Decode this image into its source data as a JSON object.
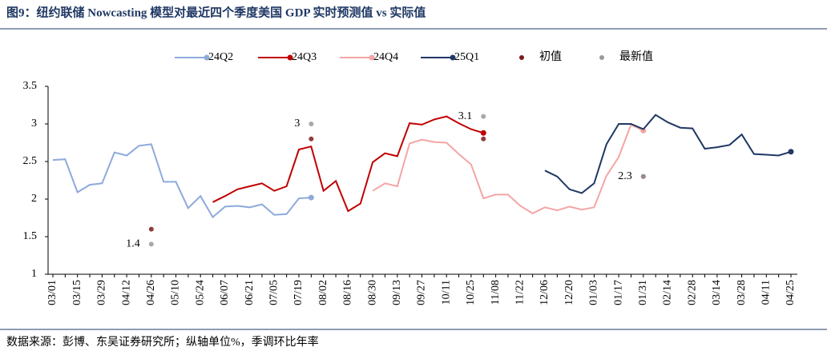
{
  "chart_data": {
    "type": "line",
    "title": "图9：纽约联储 Nowcasting 模型对最近四个季度美国 GDP 实时预测值 vs 实际值",
    "source": "数据来源：彭博、东吴证券研究所；纵轴单位%，季调环比年率",
    "categories": [
      "03/01",
      null,
      "03/15",
      null,
      "03/29",
      null,
      "04/12",
      null,
      "04/26",
      null,
      "05/10",
      null,
      "05/24",
      null,
      "06/07",
      null,
      "06/21",
      null,
      "07/05",
      null,
      "07/19",
      null,
      "08/02",
      null,
      "08/16",
      null,
      "08/30",
      null,
      "09/13",
      null,
      "09/27",
      null,
      "10/11",
      null,
      "10/25",
      null,
      "11/08",
      null,
      "11/22",
      null,
      "12/06",
      null,
      "12/20",
      null,
      "01/03",
      null,
      "01/17",
      null,
      "01/31",
      null,
      "02/14",
      null,
      "02/28",
      null,
      "03/14",
      null,
      "03/28",
      null,
      "04/11",
      null,
      "04/25"
    ],
    "ylim": [
      1,
      3.5
    ],
    "yticks": [
      1,
      1.5,
      2,
      2.5,
      3,
      3.5
    ],
    "series": [
      {
        "name": "24Q2",
        "type": "line",
        "color": "#8eaadb",
        "values": [
          2.52,
          2.53,
          2.09,
          2.19,
          2.21,
          2.62,
          2.58,
          2.71,
          2.73,
          2.23,
          2.23,
          1.88,
          2.04,
          1.76,
          1.9,
          1.91,
          1.89,
          1.93,
          1.79,
          1.8,
          2.01,
          2.02,
          null,
          null,
          null,
          null,
          null,
          null,
          null,
          null,
          null,
          null,
          null,
          null,
          null,
          null,
          null,
          null,
          null,
          null,
          null,
          null,
          null,
          null,
          null,
          null,
          null,
          null,
          null,
          null,
          null,
          null,
          null,
          null,
          null,
          null,
          null,
          null,
          null,
          null,
          null
        ]
      },
      {
        "name": "24Q3",
        "type": "line",
        "color": "#c00000",
        "values": [
          null,
          null,
          null,
          null,
          null,
          null,
          null,
          null,
          null,
          null,
          null,
          null,
          null,
          1.96,
          2.04,
          2.13,
          2.17,
          2.21,
          2.11,
          2.17,
          2.66,
          2.7,
          2.11,
          2.24,
          1.84,
          1.94,
          2.49,
          2.61,
          2.57,
          3.01,
          2.99,
          3.06,
          3.1,
          3.01,
          2.93,
          2.88,
          null,
          null,
          null,
          null,
          null,
          null,
          null,
          null,
          null,
          null,
          null,
          null,
          null,
          null,
          null,
          null,
          null,
          null,
          null,
          null,
          null,
          null,
          null,
          null,
          null
        ]
      },
      {
        "name": "24Q4",
        "type": "line",
        "color": "#f4a5a5",
        "values": [
          null,
          null,
          null,
          null,
          null,
          null,
          null,
          null,
          null,
          null,
          null,
          null,
          null,
          null,
          null,
          null,
          null,
          null,
          null,
          null,
          null,
          null,
          null,
          null,
          null,
          null,
          2.11,
          2.21,
          2.17,
          2.74,
          2.79,
          2.76,
          2.75,
          2.6,
          2.46,
          2.01,
          2.06,
          2.06,
          1.91,
          1.81,
          1.89,
          1.85,
          1.9,
          1.86,
          1.89,
          2.31,
          2.56,
          2.99,
          2.91,
          null,
          null,
          null,
          null,
          null,
          null,
          null,
          null,
          null,
          null,
          null,
          null
        ]
      },
      {
        "name": "25Q1",
        "type": "line",
        "color": "#1f3864",
        "values": [
          null,
          null,
          null,
          null,
          null,
          null,
          null,
          null,
          null,
          null,
          null,
          null,
          null,
          null,
          null,
          null,
          null,
          null,
          null,
          null,
          null,
          null,
          null,
          null,
          null,
          null,
          null,
          null,
          null,
          null,
          null,
          null,
          null,
          null,
          null,
          null,
          null,
          null,
          null,
          null,
          2.38,
          2.3,
          2.13,
          2.08,
          2.21,
          2.73,
          3.0,
          3.0,
          2.93,
          3.12,
          3.02,
          2.95,
          2.94,
          2.67,
          2.69,
          2.72,
          2.86,
          2.6,
          2.59,
          2.58,
          2.63
        ]
      },
      {
        "name": "初值",
        "type": "scatter",
        "color": "#7b1a1a",
        "values": [
          null,
          null,
          null,
          null,
          null,
          null,
          null,
          null,
          1.6,
          null,
          null,
          null,
          null,
          null,
          null,
          null,
          null,
          null,
          null,
          null,
          null,
          2.8,
          null,
          null,
          null,
          null,
          null,
          null,
          null,
          null,
          null,
          null,
          null,
          null,
          null,
          2.8,
          null,
          null,
          null,
          null,
          null,
          null,
          null,
          null,
          null,
          null,
          null,
          null,
          2.3,
          null,
          null,
          null,
          null,
          null,
          null,
          null,
          null,
          null,
          null,
          null,
          null
        ]
      },
      {
        "name": "最新值",
        "type": "scatter",
        "color": "#999999",
        "data_labels": true,
        "values": [
          null,
          null,
          null,
          null,
          null,
          null,
          null,
          null,
          1.4,
          null,
          null,
          null,
          null,
          null,
          null,
          null,
          null,
          null,
          null,
          null,
          null,
          3,
          null,
          null,
          null,
          null,
          null,
          null,
          null,
          null,
          null,
          null,
          null,
          null,
          null,
          3.1,
          null,
          null,
          null,
          null,
          null,
          null,
          null,
          null,
          null,
          null,
          null,
          null,
          2.3,
          null,
          null,
          null,
          null,
          null,
          null,
          null,
          null,
          null,
          null,
          null,
          null
        ]
      }
    ]
  }
}
